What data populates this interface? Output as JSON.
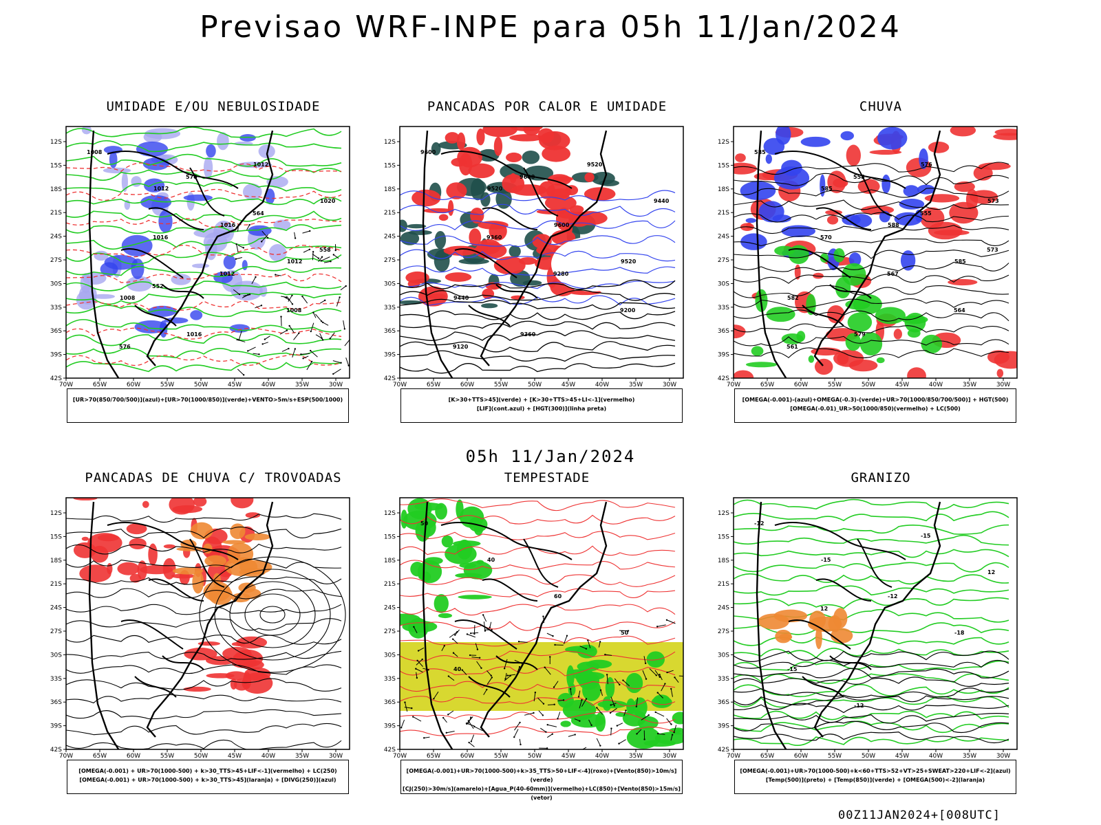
{
  "title": "Previsao WRF-INPE  para 05h 11/Jan/2024",
  "mid_title": "05h 11/Jan/2024",
  "run_stamp": "00Z11JAN2024+[008UTC]",
  "axes": {
    "lat_labels": [
      "12S",
      "15S",
      "18S",
      "21S",
      "24S",
      "27S",
      "30S",
      "33S",
      "36S",
      "39S",
      "42S"
    ],
    "lon_labels": [
      "70W",
      "65W",
      "60W",
      "55W",
      "50W",
      "45W",
      "40W",
      "35W",
      "30W"
    ]
  },
  "colors": {
    "blue": "#3344ee",
    "lavender": "#a8a8f0",
    "green": "#22cc22",
    "red": "#ee3333",
    "orange": "#ee8833",
    "darkteal": "#1f4f4a",
    "yellow": "#d8d830",
    "black": "#000000"
  },
  "panels": [
    {
      "id": "umidade",
      "title": "UMIDADE E/OU NEBULOSIDADE",
      "legend": [
        "[UR>70(850/700/500)](azul)+[UR>70(1000/850)](verde)+VENTO>5m/s+ESP(500/1000)"
      ],
      "labels": [
        "1008",
        "1012",
        "1016",
        "1012",
        "1008",
        "1016",
        "1012",
        "1020",
        "1016",
        "1012",
        "1008",
        "576",
        "570",
        "564",
        "558",
        "552"
      ]
    },
    {
      "id": "pancadas-calor",
      "title": "PANCADAS POR CALOR E UMIDADE",
      "legend": [
        "[K>30+TTS>45](verde) + [K>30+TTS>45+LI<-1](vermelho)",
        "[LIF](cont.azul) + [HGT(300)](linha preta)"
      ],
      "labels": [
        "9600",
        "9520",
        "9600",
        "9520",
        "9440",
        "9360",
        "9520",
        "9440",
        "9360",
        "9280",
        "9200",
        "9120",
        "9600"
      ]
    },
    {
      "id": "chuva",
      "title": "CHUVA",
      "legend": [
        "[OMEGA(-0.001)-(azul)+OMEGA(-0.3)-(verde)+UR>70(1000/850/700/500)] + HGT(500)",
        "[OMEGA(-0.01)_UR>50(1000/850)(vermelho) + LC(500)"
      ],
      "labels": [
        "585",
        "585",
        "588",
        "585",
        "582",
        "579",
        "576",
        "573",
        "570",
        "567",
        "564",
        "561",
        "558",
        "555",
        "573"
      ]
    },
    {
      "id": "pancadas-trovoadas",
      "title": "PANCADAS DE CHUVA C/ TROVOADAS",
      "legend": [
        "[OMEGA(-0.001) + UR>70(1000-500) + k>30_TTS>45+LIF<-1](vermelho) + LC(250)",
        "[OMEGA(-0.001) + UR>70(1000-500) + k>30_TTS>45](laranja) + [DIVG(250)](azul)"
      ],
      "labels": []
    },
    {
      "id": "tempestade",
      "title": "TEMPESTADE",
      "legend": [
        "[OMEGA(-0.001)+UR>70(1000-500)+k>35_TTS>50+LIF<-4](roxo)+[Vento(850)>10m/s](verde)",
        "[CJ(250)>30m/s](amarelo)+[Agua_P(40-60mm)](vermelho)+LC(850)+[Vento(850)>15m/s](vetor)"
      ],
      "labels": [
        "50",
        "40",
        "60",
        "50",
        "40"
      ]
    },
    {
      "id": "granizo",
      "title": "GRANIZO",
      "legend": [
        "[OMEGA(-0.001)+UR>70(1000-500)+k<60+TTS>52+VT>25+SWEAT>220+LIF<-2](azul)",
        "[Temp(500)](preto) + [Temp(850)](verde) + [OMEGA(500)<-2](laranja)"
      ],
      "labels": [
        "-12",
        "-15",
        "-12",
        "-18",
        "-15",
        "-12",
        "-15",
        "12",
        "12"
      ]
    }
  ]
}
